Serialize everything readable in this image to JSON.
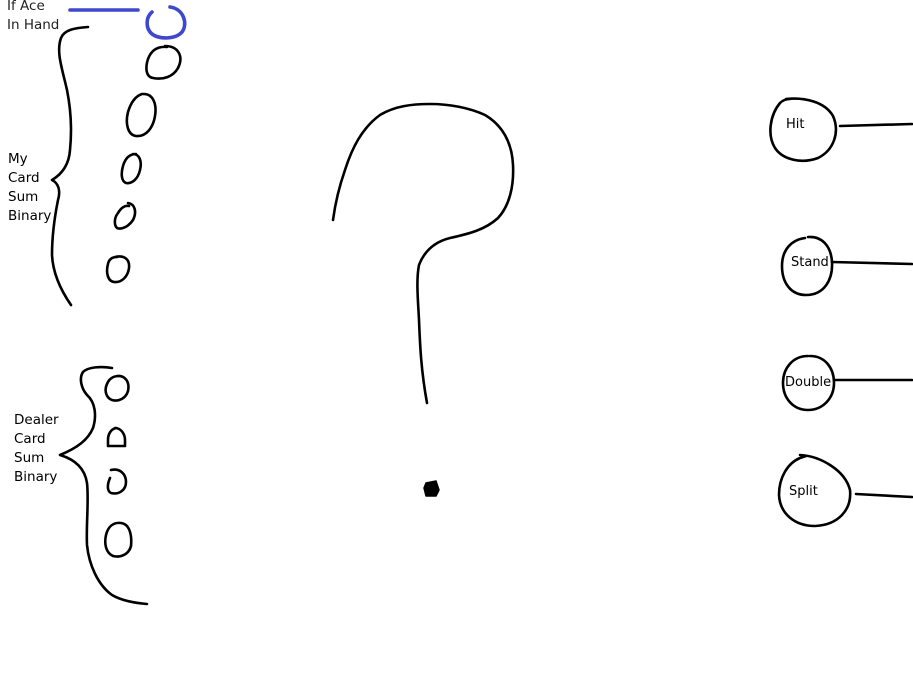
{
  "inputs": {
    "ace": {
      "lines": [
        "If Ace",
        "In Hand"
      ]
    },
    "my_card_sum": {
      "lines": [
        "My",
        "Card",
        "Sum",
        "Binary"
      ],
      "node_count": 5
    },
    "dealer_card_sum": {
      "lines": [
        "Dealer",
        "Card",
        "Sum",
        "Binary"
      ],
      "node_count": 4
    }
  },
  "hidden": {
    "symbol": "question-mark"
  },
  "outputs": [
    {
      "label": "Hit"
    },
    {
      "label": "Stand"
    },
    {
      "label": "Double"
    },
    {
      "label": "Split"
    }
  ],
  "colors": {
    "ink": "#000000",
    "ace_highlight": "#3f48cc"
  }
}
